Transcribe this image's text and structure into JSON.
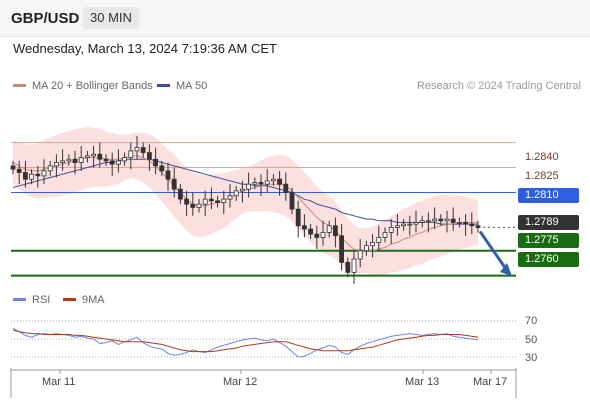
{
  "header": {
    "symbol": "GBP/USD",
    "timeframe": "30 MIN"
  },
  "datetime": "Wednesday, March 13, 2024 7:19:36 AM CET",
  "legend": {
    "ma20": "MA 20 + Bollinger Bands",
    "ma50": "MA 50",
    "credit": "Research © 2024 Trading Central",
    "rsi": "RSI",
    "ma9": "9MA"
  },
  "colors": {
    "ma20": "#c98a7a",
    "ma50": "#3b4c9b",
    "blue": "#2f5fe0",
    "green": "#1a6b12",
    "band": "#fbd5d5"
  },
  "levels": [
    {
      "value": "1.2840",
      "style": "plain"
    },
    {
      "value": "1.2825",
      "style": "plain"
    },
    {
      "value": "1.2810",
      "style": "blue"
    },
    {
      "value": "1.2789",
      "style": "dark"
    },
    {
      "value": "1.2775",
      "style": "green"
    },
    {
      "value": "1.2760",
      "style": "green"
    }
  ],
  "rsi_ticks": [
    "70",
    "50",
    "30"
  ],
  "xaxis": [
    "Mar 11",
    "Mar 12",
    "Mar 13",
    "Mar 17"
  ],
  "chart_data": {
    "type": "candlestick",
    "y_reference_levels": [
      1.284,
      1.2825,
      1.281,
      1.2789,
      1.2775,
      1.276
    ],
    "current_price": 1.2789,
    "close": [
      1.2824,
      1.2822,
      1.2818,
      1.2821,
      1.282,
      1.2823,
      1.2826,
      1.2828,
      1.2829,
      1.283,
      1.2828,
      1.2831,
      1.2832,
      1.2833,
      1.283,
      1.2829,
      1.2827,
      1.2829,
      1.2831,
      1.2835,
      1.2837,
      1.2834,
      1.283,
      1.2826,
      1.2823,
      1.2818,
      1.2812,
      1.2806,
      1.2803,
      1.2801,
      1.2803,
      1.2806,
      1.2805,
      1.2804,
      1.2806,
      1.2808,
      1.2811,
      1.2812,
      1.2815,
      1.2816,
      1.2815,
      1.2817,
      1.2818,
      1.2815,
      1.281,
      1.28,
      1.279,
      1.2788,
      1.2785,
      1.2783,
      1.2786,
      1.279,
      1.2784,
      1.2768,
      1.2762,
      1.277,
      1.2775,
      1.2778,
      1.278,
      1.2783,
      1.2786,
      1.2789,
      1.279,
      1.2791,
      1.2791,
      1.2792,
      1.2793,
      1.2793,
      1.2794,
      1.2793,
      1.2794,
      1.2792,
      1.2792,
      1.2791,
      1.279,
      1.2789
    ],
    "ma20": [
      1.2828,
      1.2826,
      1.2824,
      1.2823,
      1.2823,
      1.2824,
      1.2825,
      1.2826,
      1.2827,
      1.2828,
      1.2829,
      1.283,
      1.2831,
      1.2831,
      1.2831,
      1.283,
      1.283,
      1.283,
      1.2831,
      1.2832,
      1.2832,
      1.2831,
      1.2829,
      1.2826,
      1.2822,
      1.2818,
      1.2814,
      1.281,
      1.2806,
      1.2803,
      1.2802,
      1.2802,
      1.2803,
      1.2804,
      1.2805,
      1.2807,
      1.2809,
      1.2811,
      1.2812,
      1.2813,
      1.2814,
      1.2815,
      1.2815,
      1.2815,
      1.2814,
      1.2811,
      1.2807,
      1.2803,
      1.2799,
      1.2795,
      1.2792,
      1.279,
      1.2787,
      1.2783,
      1.2779,
      1.2776,
      1.2775,
      1.2775,
      1.2775,
      1.2776,
      1.2777,
      1.2779,
      1.278,
      1.2782,
      1.2783,
      1.2785,
      1.2786,
      1.2788,
      1.2789,
      1.279,
      1.2791,
      1.2791,
      1.2792,
      1.2792,
      1.2792,
      1.2792
    ],
    "ma50": [
      1.2813,
      1.2814,
      1.2815,
      1.2816,
      1.2817,
      1.2818,
      1.2819,
      1.282,
      1.2821,
      1.2822,
      1.2823,
      1.2824,
      1.2825,
      1.2826,
      1.2827,
      1.2828,
      1.2828,
      1.2829,
      1.283,
      1.283,
      1.283,
      1.283,
      1.283,
      1.2829,
      1.2828,
      1.2827,
      1.2826,
      1.2825,
      1.2824,
      1.2823,
      1.2822,
      1.2821,
      1.282,
      1.2819,
      1.2818,
      1.2817,
      1.2816,
      1.2815,
      1.2815,
      1.2814,
      1.2814,
      1.2814,
      1.2813,
      1.2812,
      1.2811,
      1.281,
      1.2808,
      1.2806,
      1.2805,
      1.2803,
      1.2802,
      1.2801,
      1.28,
      1.2798,
      1.2797,
      1.2796,
      1.2795,
      1.2794,
      1.2794,
      1.2793,
      1.2793,
      1.2793,
      1.2792,
      1.2792,
      1.2792,
      1.2792,
      1.2792,
      1.2792,
      1.2792,
      1.2791,
      1.2791,
      1.2791,
      1.2791,
      1.2791,
      1.2791,
      1.2791
    ],
    "rsi": [
      62,
      58,
      54,
      52,
      55,
      56,
      55,
      56,
      55,
      54,
      52,
      53,
      51,
      50,
      45,
      46,
      48,
      44,
      47,
      49,
      52,
      46,
      42,
      40,
      39,
      34,
      32,
      33,
      35,
      38,
      36,
      35,
      38,
      41,
      43,
      45,
      47,
      49,
      50,
      51,
      49,
      48,
      50,
      46,
      42,
      36,
      30,
      31,
      34,
      38,
      40,
      43,
      41,
      35,
      33,
      38,
      42,
      45,
      47,
      49,
      51,
      53,
      54,
      55,
      56,
      55,
      54,
      55,
      56,
      55,
      56,
      53,
      52,
      51,
      50,
      49
    ],
    "rsi_ma9": [
      60,
      58,
      57,
      56,
      56,
      55,
      55,
      55,
      55,
      55,
      54,
      54,
      53,
      52,
      51,
      50,
      49,
      48,
      47,
      47,
      47,
      47,
      46,
      45,
      44,
      42,
      40,
      38,
      37,
      36,
      36,
      36,
      36,
      37,
      38,
      39,
      40,
      42,
      43,
      44,
      45,
      46,
      47,
      47,
      47,
      45,
      43,
      41,
      39,
      38,
      37,
      37,
      37,
      37,
      37,
      38,
      39,
      40,
      41,
      43,
      45,
      47,
      49,
      50,
      51,
      52,
      53,
      54,
      54,
      55,
      55,
      55,
      55,
      54,
      53,
      52
    ],
    "rsi_levels": [
      70,
      50,
      30
    ]
  }
}
